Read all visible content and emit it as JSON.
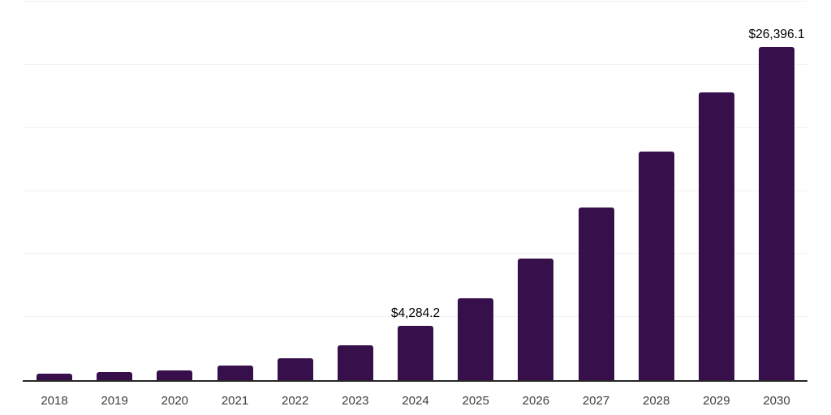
{
  "chart_data": {
    "type": "bar",
    "title": "",
    "categories": [
      "2018",
      "2019",
      "2020",
      "2021",
      "2022",
      "2023",
      "2024",
      "2025",
      "2026",
      "2027",
      "2028",
      "2029",
      "2030"
    ],
    "values": [
      500,
      620,
      770,
      1170,
      1740,
      2740,
      4284.2,
      6470,
      9620,
      13690,
      18090,
      22780,
      26396.1
    ],
    "ylim": [
      0,
      30000
    ],
    "gridline_step": 5000,
    "grid": "horizontal-only",
    "legend": "none",
    "y_axis_labels": "none",
    "bar_color": "#37104B",
    "data_labels": [
      {
        "category": "2024",
        "text": "$4,284.2"
      },
      {
        "category": "2030",
        "text": "$26,396.1"
      }
    ]
  },
  "colors": {
    "background": "#ffffff",
    "bar": "#37104B",
    "gridline": "#f2f2f2",
    "axis_line": "#262626",
    "tick_label": "#3d3d3d",
    "data_label": "#000000"
  }
}
